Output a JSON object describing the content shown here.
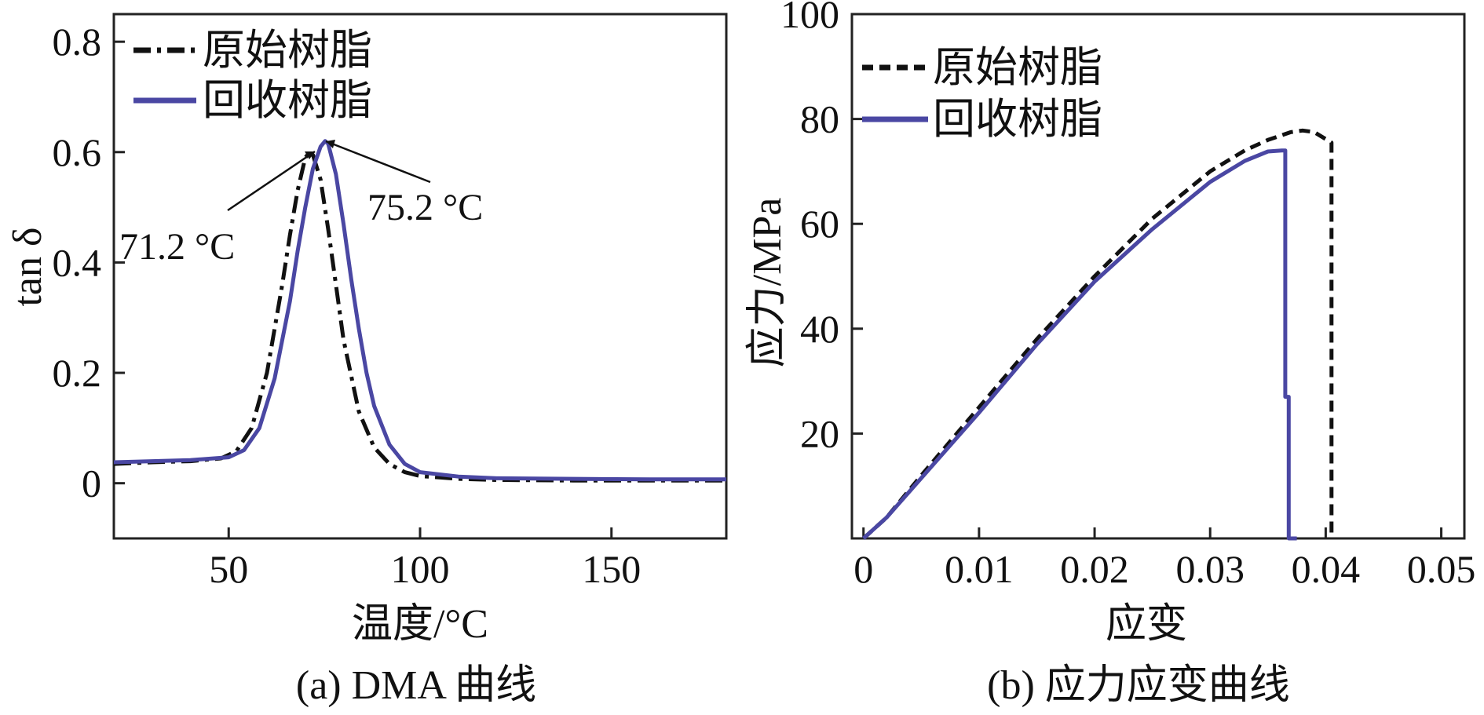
{
  "colors": {
    "original": "#111111",
    "recycled": "#4a47a3",
    "axis": "#222222"
  },
  "chart_data": [
    {
      "type": "line",
      "caption": "(a) DMA 曲线",
      "xlabel": "温度/°C",
      "ylabel": "tan δ",
      "xlim": [
        20,
        180
      ],
      "ylim": [
        -0.1,
        0.85
      ],
      "xticks": [
        50,
        100,
        150
      ],
      "xtick_labels": [
        "50",
        "100",
        "150"
      ],
      "yticks": [
        0,
        0.2,
        0.4,
        0.6,
        0.8
      ],
      "ytick_labels": [
        "0",
        "0.2",
        "0.4",
        "0.6",
        "0.8"
      ],
      "legend_position": "top-left",
      "series": [
        {
          "name": "原始树脂",
          "style": "dashdot",
          "x": [
            20,
            30,
            40,
            48,
            52,
            56,
            60,
            64,
            66,
            68,
            70,
            71.2,
            72,
            74,
            76,
            78,
            80,
            84,
            88,
            92,
            96,
            100,
            110,
            120,
            140,
            160,
            180
          ],
          "y": [
            0.035,
            0.038,
            0.04,
            0.045,
            0.058,
            0.1,
            0.2,
            0.36,
            0.45,
            0.53,
            0.59,
            0.6,
            0.595,
            0.55,
            0.46,
            0.36,
            0.26,
            0.13,
            0.065,
            0.035,
            0.02,
            0.013,
            0.008,
            0.006,
            0.005,
            0.005,
            0.005
          ]
        },
        {
          "name": "回收树脂",
          "style": "solid",
          "x": [
            20,
            30,
            40,
            50,
            54,
            58,
            62,
            66,
            68,
            70,
            72,
            74,
            75.2,
            76,
            78,
            80,
            82,
            84,
            86,
            88,
            92,
            96,
            100,
            110,
            120,
            140,
            160,
            180
          ],
          "y": [
            0.038,
            0.04,
            0.042,
            0.047,
            0.06,
            0.1,
            0.19,
            0.33,
            0.42,
            0.5,
            0.57,
            0.61,
            0.62,
            0.615,
            0.56,
            0.47,
            0.37,
            0.28,
            0.2,
            0.14,
            0.07,
            0.035,
            0.02,
            0.012,
            0.009,
            0.008,
            0.007,
            0.007
          ]
        }
      ],
      "annotations": [
        {
          "text": "71.2 °C",
          "x": 71.2,
          "y": 0.6
        },
        {
          "text": "75.2 °C",
          "x": 75.2,
          "y": 0.62
        }
      ]
    },
    {
      "type": "line",
      "caption": "(b) 应力应变曲线",
      "xlabel": "应变",
      "ylabel": "应力/MPa",
      "xlim": [
        -0.001,
        0.052
      ],
      "ylim": [
        0,
        100
      ],
      "xticks": [
        0,
        0.01,
        0.02,
        0.03,
        0.04,
        0.05
      ],
      "xtick_labels": [
        "0",
        "0.01",
        "0.02",
        "0.03",
        "0.04",
        "0.05"
      ],
      "yticks": [
        20,
        40,
        60,
        80,
        100
      ],
      "ytick_labels": [
        "20",
        "40",
        "60",
        "80",
        "100"
      ],
      "legend_position": "top-left",
      "series": [
        {
          "name": "原始树脂",
          "style": "dashed",
          "x": [
            0,
            0.002,
            0.005,
            0.01,
            0.015,
            0.02,
            0.025,
            0.03,
            0.033,
            0.035,
            0.037,
            0.038,
            0.039,
            0.0405,
            0.0405,
            0.0405
          ],
          "y": [
            0,
            4,
            12,
            25,
            38,
            50,
            61,
            70,
            74,
            76,
            77.5,
            77.8,
            77.5,
            75.5,
            40,
            0
          ]
        },
        {
          "name": "回收树脂",
          "style": "solid",
          "x": [
            0,
            0.002,
            0.005,
            0.01,
            0.015,
            0.02,
            0.025,
            0.03,
            0.033,
            0.035,
            0.0362,
            0.0365,
            0.0365,
            0.0368,
            0.0368,
            0.0375
          ],
          "y": [
            0,
            4,
            11.5,
            24,
            37,
            49,
            59,
            68,
            72,
            73.8,
            74,
            74,
            27,
            27,
            0,
            0
          ]
        }
      ]
    }
  ]
}
